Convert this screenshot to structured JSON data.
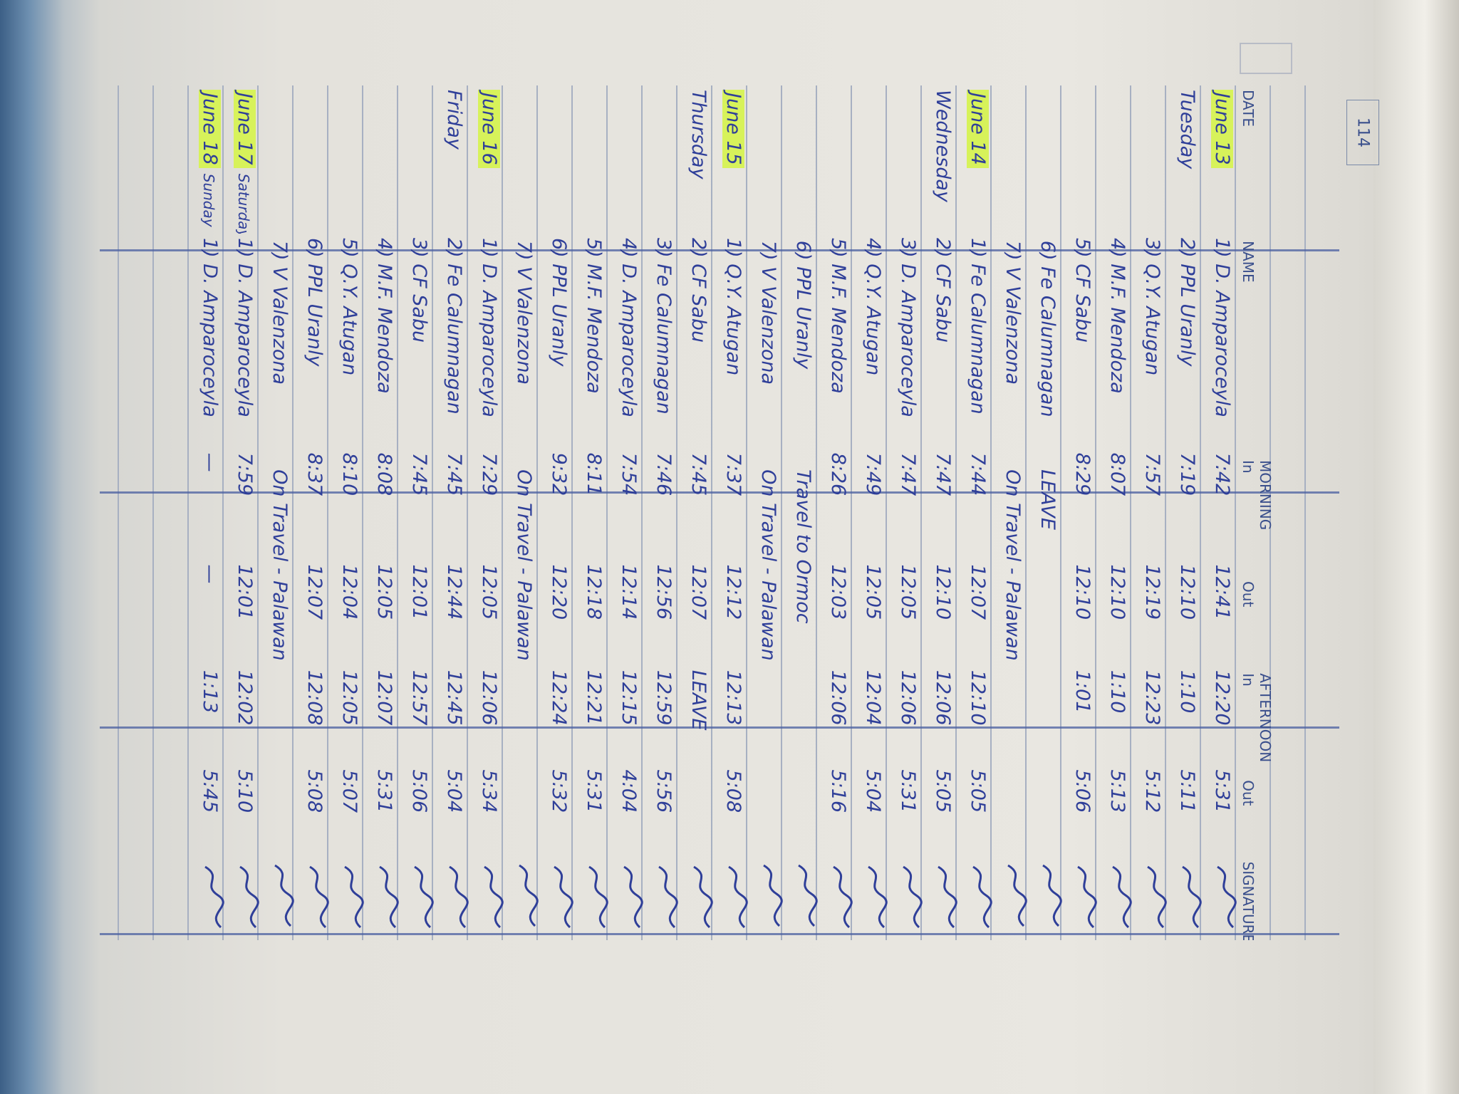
{
  "page_number": "114",
  "headers": {
    "date": "DATE",
    "name": "NAME",
    "morning": "MORNING",
    "afternoon": "AFTERNOON",
    "in": "In",
    "out": "Out",
    "signature": "SIGNATURE"
  },
  "colors": {
    "ink": "#2f3f99",
    "highlight": "#d7f25a",
    "paper": "#e9e7e1"
  },
  "rows": [
    {
      "date": "June 13",
      "day": "Tuesday",
      "name": "1) D. Amparoceyla",
      "am_in": "7:42",
      "am_out": "12:41",
      "pm_in": "12:20",
      "pm_out": "5:31"
    },
    {
      "date": "",
      "day": "",
      "name": "2) PPL Uranly",
      "am_in": "7:19",
      "am_out": "12:10",
      "pm_in": "1:10",
      "pm_out": "5:11"
    },
    {
      "date": "",
      "day": "",
      "name": "3) Q.Y. Atugan",
      "am_in": "7:57",
      "am_out": "12:19",
      "pm_in": "12:23",
      "pm_out": "5:12"
    },
    {
      "date": "",
      "day": "",
      "name": "4) M.F. Mendoza",
      "am_in": "8:07",
      "am_out": "12:10",
      "pm_in": "1:10",
      "pm_out": "5:13"
    },
    {
      "date": "",
      "day": "",
      "name": "5) CF Sabu",
      "am_in": "8:29",
      "am_out": "12:10",
      "pm_in": "1:01",
      "pm_out": "5:06"
    },
    {
      "date": "",
      "day": "",
      "name": "6) Fe Calumnagan",
      "note": "LEAVE"
    },
    {
      "date": "",
      "day": "",
      "name": "7) V Valenzona",
      "note": "On Travel - Palawan"
    },
    {
      "date": "June 14",
      "day": "Wednesday",
      "name": "1) Fe Calumnagan",
      "am_in": "7:44",
      "am_out": "12:07",
      "pm_in": "12:10",
      "pm_out": "5:05"
    },
    {
      "date": "",
      "day": "",
      "name": "2) CF Sabu",
      "am_in": "7:47",
      "am_out": "12:10",
      "pm_in": "12:06",
      "pm_out": "5:05"
    },
    {
      "date": "",
      "day": "",
      "name": "3) D. Amparoceyla",
      "am_in": "7:47",
      "am_out": "12:05",
      "pm_in": "12:06",
      "pm_out": "5:31"
    },
    {
      "date": "",
      "day": "",
      "name": "4) Q.Y. Atugan",
      "am_in": "7:49",
      "am_out": "12:05",
      "pm_in": "12:04",
      "pm_out": "5:04"
    },
    {
      "date": "",
      "day": "",
      "name": "5) M.F. Mendoza",
      "am_in": "8:26",
      "am_out": "12:03",
      "pm_in": "12:06",
      "pm_out": "5:16"
    },
    {
      "date": "",
      "day": "",
      "name": "6) PPL Uranly",
      "note": "Travel to Ormoc"
    },
    {
      "date": "",
      "day": "",
      "name": "7) V Valenzona",
      "note": "On Travel - Palawan"
    },
    {
      "date": "June 15",
      "day": "Thursday",
      "name": "1) Q.Y. Atugan",
      "am_in": "7:37",
      "am_out": "12:12",
      "pm_in": "12:13",
      "pm_out": "5:08"
    },
    {
      "date": "",
      "day": "",
      "name": "2) CF Sabu",
      "am_in": "7:45",
      "am_out": "12:07",
      "pm_in": "LEAVE",
      "pm_out": ""
    },
    {
      "date": "",
      "day": "",
      "name": "3) Fe Calumnagan",
      "am_in": "7:46",
      "am_out": "12:56",
      "pm_in": "12:59",
      "pm_out": "5:56"
    },
    {
      "date": "",
      "day": "",
      "name": "4) D. Amparoceyla",
      "am_in": "7:54",
      "am_out": "12:14",
      "pm_in": "12:15",
      "pm_out": "4:04"
    },
    {
      "date": "",
      "day": "",
      "name": "5) M.F. Mendoza",
      "am_in": "8:11",
      "am_out": "12:18",
      "pm_in": "12:21",
      "pm_out": "5:31"
    },
    {
      "date": "",
      "day": "",
      "name": "6) PPL Uranly",
      "am_in": "9:32",
      "am_out": "12:20",
      "pm_in": "12:24",
      "pm_out": "5:32"
    },
    {
      "date": "",
      "day": "",
      "name": "7) V Valenzona",
      "note": "On Travel - Palawan"
    },
    {
      "date": "June 16",
      "day": "Friday",
      "name": "1) D. Amparoceyla",
      "am_in": "7:29",
      "am_out": "12:05",
      "pm_in": "12:06",
      "pm_out": "5:34"
    },
    {
      "date": "",
      "day": "",
      "name": "2) Fe Calumnagan",
      "am_in": "7:45",
      "am_out": "12:44",
      "pm_in": "12:45",
      "pm_out": "5:04"
    },
    {
      "date": "",
      "day": "",
      "name": "3) CF Sabu",
      "am_in": "7:45",
      "am_out": "12:01",
      "pm_in": "12:57",
      "pm_out": "5:06"
    },
    {
      "date": "",
      "day": "",
      "name": "4) M.F. Mendoza",
      "am_in": "8:08",
      "am_out": "12:05",
      "pm_in": "12:07",
      "pm_out": "5:31"
    },
    {
      "date": "",
      "day": "",
      "name": "5) Q.Y. Atugan",
      "am_in": "8:10",
      "am_out": "12:04",
      "pm_in": "12:05",
      "pm_out": "5:07"
    },
    {
      "date": "",
      "day": "",
      "name": "6) PPL Uranly",
      "am_in": "8:37",
      "am_out": "12:07",
      "pm_in": "12:08",
      "pm_out": "5:08"
    },
    {
      "date": "",
      "day": "",
      "name": "7) V Valenzona",
      "note": "On Travel - Palawan"
    },
    {
      "date": "June 17",
      "day": "Saturday",
      "name": "1) D. Amparoceyla",
      "am_in": "7:59",
      "am_out": "12:01",
      "pm_in": "12:02",
      "pm_out": "5:10"
    },
    {
      "date": "June 18",
      "day": "Sunday",
      "name": "1) D. Amparoceyla",
      "am_in": "—",
      "am_out": "—",
      "pm_in": "1:13",
      "pm_out": "5:45"
    }
  ]
}
